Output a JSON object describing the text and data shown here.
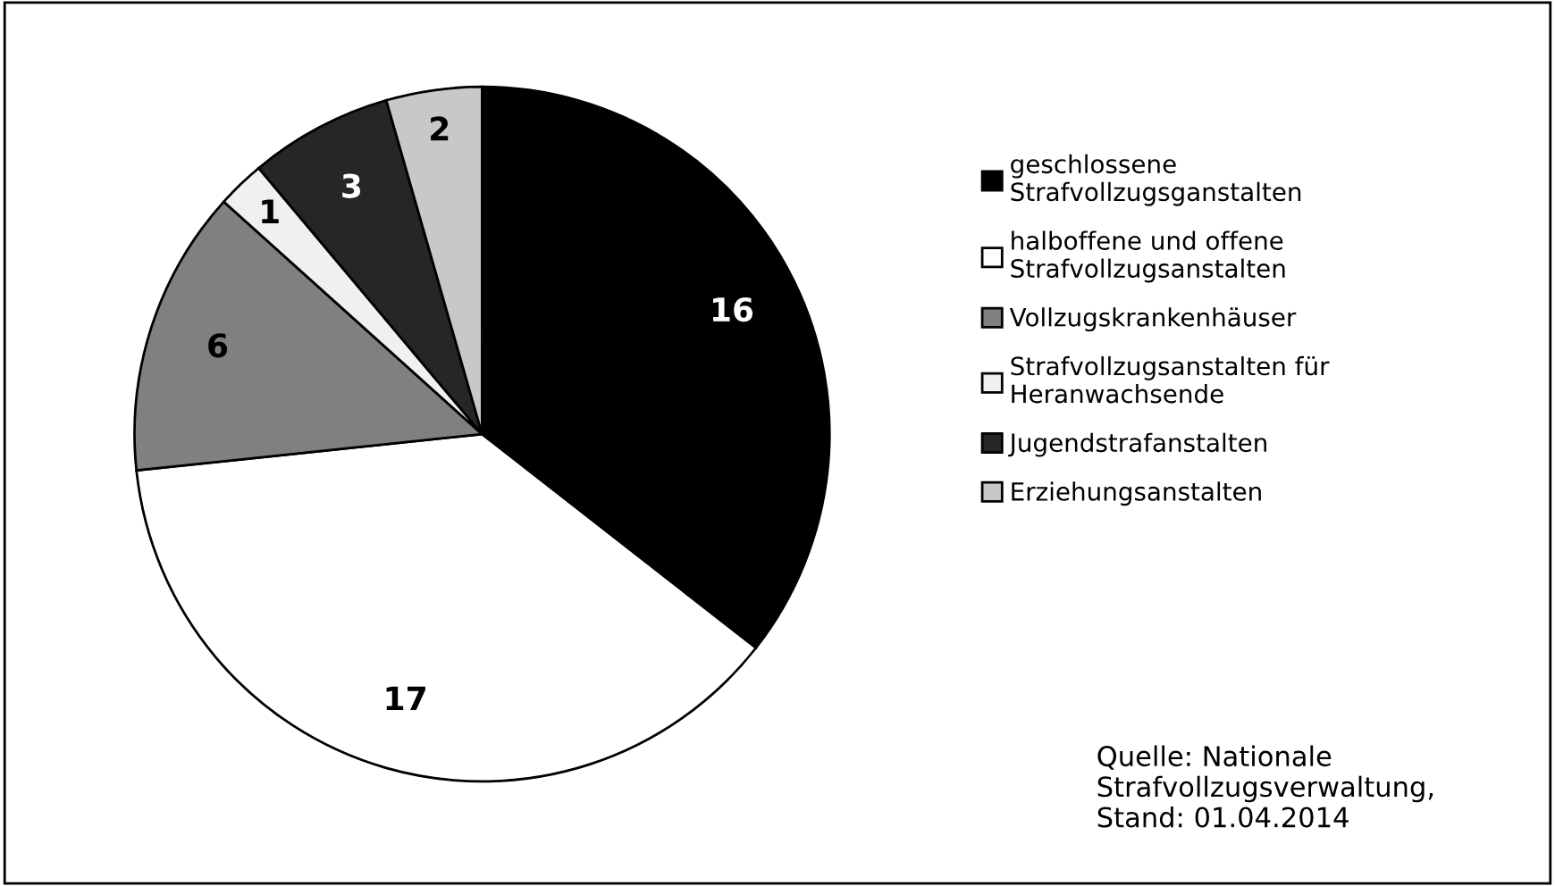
{
  "chart_data": {
    "type": "pie",
    "categories": [
      "geschlossene Strafvollzugsganstalten",
      "halboffene und offene Strafvollzugsanstalten",
      "Vollzugskrankenhäuser",
      "Strafvollzugsanstalten für Heranwachsende",
      "Jugendstrafanstalten",
      "Erziehungsanstalten"
    ],
    "values": [
      16,
      17,
      6,
      1,
      3,
      2
    ],
    "colors": [
      "#000000",
      "#ffffff",
      "#808080",
      "#f0f0f0",
      "#262626",
      "#c8c8c8"
    ],
    "data_labels": true,
    "legend": "right",
    "annotations": [
      "Quelle: Nationale Strafvollzugsverwaltung, Stand: 01.04.2014"
    ]
  }
}
